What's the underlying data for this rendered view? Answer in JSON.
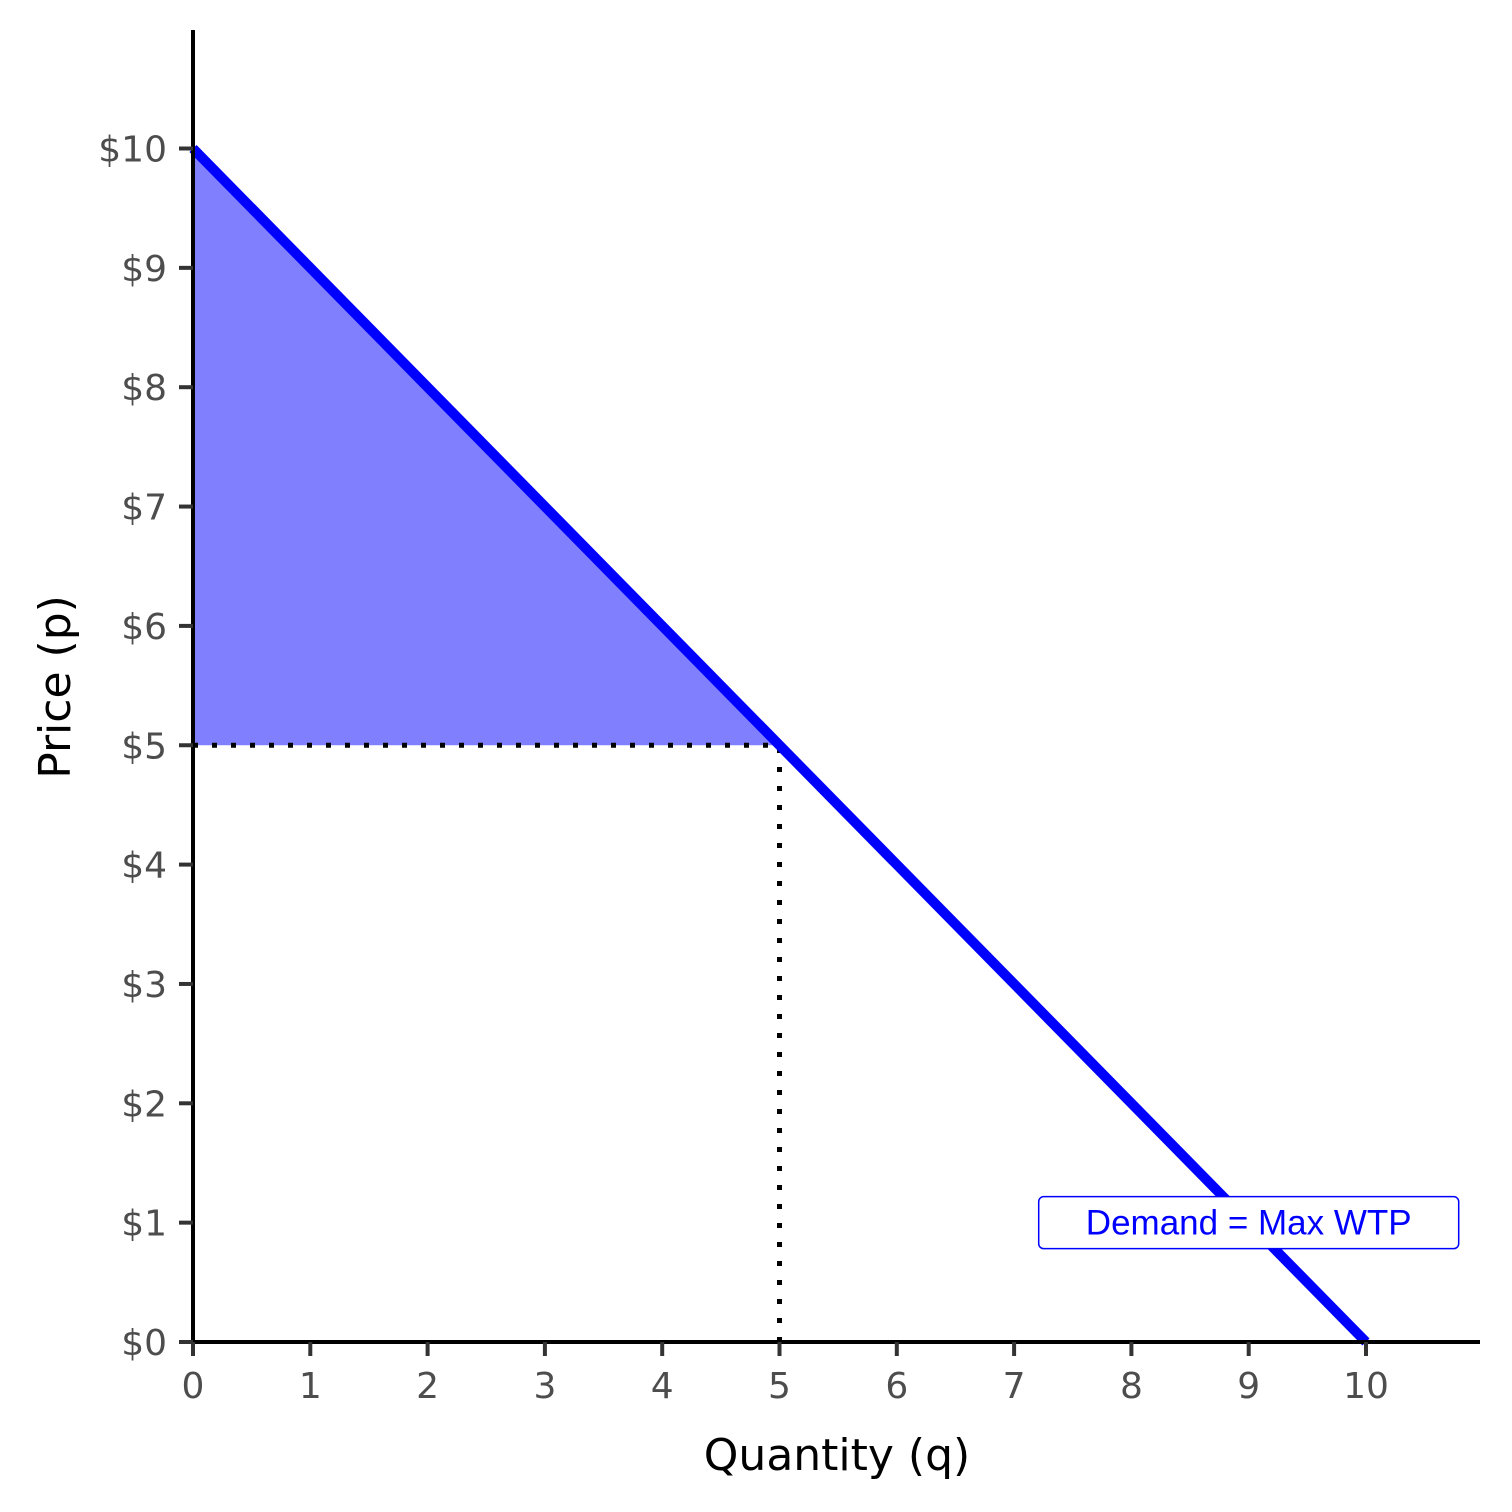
{
  "chart_data": {
    "type": "line",
    "title": "",
    "xlabel": "Quantity (q)",
    "ylabel": "Price (p)",
    "xlim": [
      0,
      11
    ],
    "ylim": [
      0,
      11
    ],
    "x_ticks": [
      0,
      1,
      2,
      3,
      4,
      5,
      6,
      7,
      8,
      9,
      10
    ],
    "x_tick_labels": [
      "0",
      "1",
      "2",
      "3",
      "4",
      "5",
      "6",
      "7",
      "8",
      "9",
      "10"
    ],
    "y_ticks": [
      0,
      1,
      2,
      3,
      4,
      5,
      6,
      7,
      8,
      9,
      10
    ],
    "y_tick_labels": [
      "$0",
      "$1",
      "$2",
      "$3",
      "$4",
      "$5",
      "$6",
      "$7",
      "$8",
      "$9",
      "$10"
    ],
    "grid": false,
    "series": [
      {
        "name": "Demand = Max WTP",
        "color": "#0000ff",
        "x": [
          0,
          10
        ],
        "y": [
          10,
          0
        ]
      }
    ],
    "shaded_area": {
      "color": "#8080ff",
      "vertices": [
        [
          0,
          10
        ],
        [
          5,
          5
        ],
        [
          0,
          5
        ]
      ]
    },
    "reference_lines": [
      {
        "orientation": "horizontal",
        "from": [
          0,
          5
        ],
        "to": [
          5,
          5
        ],
        "style": "dotted",
        "color": "#000000"
      },
      {
        "orientation": "vertical",
        "from": [
          5,
          0
        ],
        "to": [
          5,
          5
        ],
        "style": "dotted",
        "color": "#000000"
      }
    ],
    "annotations": [
      {
        "text": "Demand = Max WTP",
        "x": 9,
        "y": 1,
        "color": "#0000ff",
        "boxed": true
      }
    ]
  }
}
